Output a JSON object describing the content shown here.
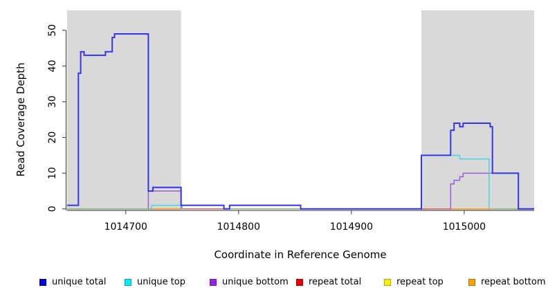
{
  "figure": {
    "background": "#ffffff"
  },
  "chart_data": {
    "type": "line",
    "subtype": "step-coverage-plot",
    "title": "",
    "xlabel": "Coordinate in Reference Genome",
    "ylabel": "Read Coverage Depth",
    "xlim": [
      1014648,
      1015062
    ],
    "ylim": [
      0,
      55.5
    ],
    "xticks": [
      1014700,
      1014800,
      1014900,
      1015000
    ],
    "yticks": [
      0,
      10,
      20,
      30,
      40,
      50
    ],
    "grid": "off",
    "axis_color": "#333333",
    "shaded_regions": [
      {
        "label": "left-gray-band",
        "x0": 1014648,
        "x1": 1014749,
        "color": "#d9d9d9"
      },
      {
        "label": "right-gray-band",
        "x0": 1014962,
        "x1": 1015062,
        "color": "#d9d9d9"
      }
    ],
    "series": [
      {
        "name": "repeat top",
        "color": "#f0e800",
        "linewidth": 1.4,
        "in_legend": true,
        "segments": [
          [
            [
              1014648,
              0
            ],
            [
              1015062,
              0
            ]
          ]
        ]
      },
      {
        "name": "repeat total",
        "color": "#e05566",
        "linewidth": 1.4,
        "in_legend": true,
        "segments": [
          [
            [
              1014648,
              0
            ],
            [
              1015062,
              0
            ]
          ]
        ]
      },
      {
        "name": "repeat bottom",
        "color": "#ff9d1e",
        "linewidth": 1.6,
        "in_legend": true,
        "segments": [
          [
            [
              1014723,
              0
            ],
            [
              1014750,
              0
            ]
          ],
          [
            [
              1014988,
              0
            ],
            [
              1015025,
              0
            ]
          ]
        ]
      },
      {
        "name": "zero-coverage-overlap",
        "color": "#7cc47c",
        "linewidth": 1.4,
        "in_legend": false,
        "segments": [
          [
            [
              1014648,
              0
            ],
            [
              1014723,
              0
            ]
          ],
          [
            [
              1014792,
              0
            ],
            [
              1014855,
              0
            ]
          ],
          [
            [
              1015025,
              0
            ],
            [
              1015048,
              0
            ]
          ]
        ]
      },
      {
        "name": "unique bottom",
        "color": "#9a5bd9",
        "linewidth": 1.5,
        "in_legend": true,
        "segments": [
          [
            [
              1014720,
              0
            ],
            [
              1014720,
              5
            ],
            [
              1014749,
              5
            ],
            [
              1014749,
              0
            ]
          ],
          [
            [
              1014792,
              0
            ],
            [
              1014792,
              1
            ],
            [
              1014855,
              1
            ],
            [
              1014855,
              0
            ]
          ],
          [
            [
              1014988,
              0
            ],
            [
              1014988,
              7
            ],
            [
              1014991,
              7
            ],
            [
              1014991,
              8
            ],
            [
              1014996,
              8
            ],
            [
              1014996,
              9
            ],
            [
              1014999,
              9
            ],
            [
              1014999,
              10
            ],
            [
              1015048,
              10
            ],
            [
              1015048,
              0
            ]
          ]
        ]
      },
      {
        "name": "unique top",
        "color": "#45d6e6",
        "linewidth": 1.5,
        "in_legend": true,
        "segments": [
          [
            [
              1014723,
              0
            ],
            [
              1014723,
              1
            ],
            [
              1014750,
              1
            ],
            [
              1014750,
              0
            ]
          ],
          [
            [
              1014962,
              0
            ],
            [
              1014962,
              15
            ],
            [
              1014996,
              15
            ],
            [
              1014996,
              14
            ],
            [
              1015022,
              14
            ],
            [
              1015022,
              0
            ]
          ]
        ]
      },
      {
        "name": "unique total",
        "color": "#3434ec",
        "linewidth": 2,
        "in_legend": true,
        "segments": [
          [
            [
              1014648,
              1
            ],
            [
              1014658,
              1
            ],
            [
              1014658,
              38
            ],
            [
              1014660,
              38
            ],
            [
              1014660,
              44
            ],
            [
              1014663,
              44
            ],
            [
              1014663,
              43
            ],
            [
              1014682,
              43
            ],
            [
              1014682,
              44
            ],
            [
              1014688,
              44
            ],
            [
              1014688,
              48
            ],
            [
              1014690,
              48
            ],
            [
              1014690,
              49
            ],
            [
              1014720,
              49
            ],
            [
              1014720,
              5
            ],
            [
              1014724,
              5
            ],
            [
              1014724,
              6
            ],
            [
              1014749,
              6
            ],
            [
              1014749,
              1
            ],
            [
              1014787,
              1
            ],
            [
              1014787,
              0
            ],
            [
              1014792,
              0
            ],
            [
              1014792,
              1
            ],
            [
              1014855,
              1
            ],
            [
              1014855,
              0
            ],
            [
              1014962,
              0
            ],
            [
              1014962,
              15
            ],
            [
              1014988,
              15
            ],
            [
              1014988,
              22
            ],
            [
              1014991,
              22
            ],
            [
              1014991,
              24
            ],
            [
              1014996,
              24
            ],
            [
              1014996,
              23
            ],
            [
              1014999,
              23
            ],
            [
              1014999,
              24
            ],
            [
              1015023,
              24
            ],
            [
              1015023,
              23
            ],
            [
              1015025,
              23
            ],
            [
              1015025,
              10
            ],
            [
              1015048,
              10
            ],
            [
              1015048,
              0
            ],
            [
              1015062,
              0
            ]
          ]
        ]
      }
    ],
    "legend": {
      "position": "bottom",
      "items": [
        {
          "label": "unique total",
          "color": "#0000ee"
        },
        {
          "label": "unique top",
          "color": "#00eeee"
        },
        {
          "label": "unique bottom",
          "color": "#a020f0"
        },
        {
          "label": "repeat total",
          "color": "#ee0000"
        },
        {
          "label": "repeat top",
          "color": "#f5f000"
        },
        {
          "label": "repeat bottom",
          "color": "#ffa000"
        }
      ]
    }
  }
}
